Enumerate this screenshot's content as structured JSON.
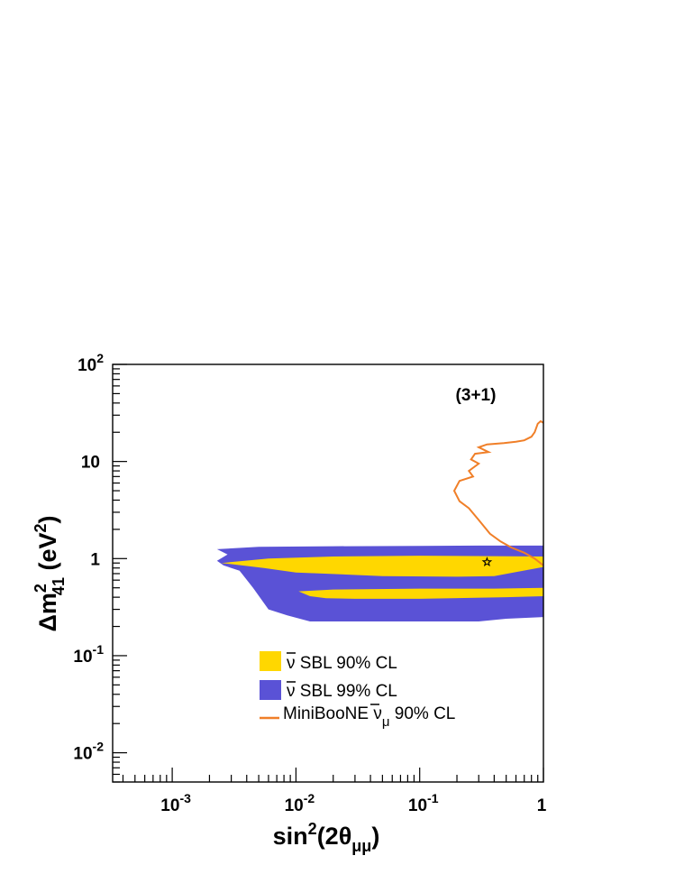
{
  "chart_data": {
    "type": "area",
    "annotation": "(3+1)",
    "x_scale": "log",
    "y_scale": "log",
    "xlim": [
      0.00033,
      1
    ],
    "ylim": [
      0.005,
      100
    ],
    "xlabel": {
      "base": "sin",
      "sup": "2",
      "paren": "(2θ",
      "sub": "μμ",
      "close": ")"
    },
    "ylabel": {
      "base": "Δm",
      "sup": "2",
      "sub": "41",
      "unit": " (eV",
      "unit_sup": "2",
      "close": ")"
    },
    "x_ticks": [
      {
        "value": 0.001,
        "base": "10",
        "exp": "-3"
      },
      {
        "value": 0.01,
        "base": "10",
        "exp": "-2"
      },
      {
        "value": 0.1,
        "base": "10",
        "exp": "-1"
      },
      {
        "value": 1,
        "base": "1",
        "exp": ""
      }
    ],
    "y_ticks": [
      {
        "value": 0.01,
        "base": "10",
        "exp": "-2"
      },
      {
        "value": 0.1,
        "base": "10",
        "exp": "-1"
      },
      {
        "value": 1,
        "base": "1",
        "exp": ""
      },
      {
        "value": 10,
        "base": "10",
        "exp": ""
      },
      {
        "value": 100,
        "base": "10",
        "exp": "2"
      }
    ],
    "series": [
      {
        "name": "ν̄ SBL 99% CL",
        "legend_main": "ν",
        "legend_rest": " SBL 99% CL",
        "kind": "region",
        "color": "#5a52d6",
        "polygons": [
          [
            [
              0.0023,
              1.25
            ],
            [
              0.005,
              1.32
            ],
            [
              0.02,
              1.34
            ],
            [
              0.1,
              1.35
            ],
            [
              0.3,
              1.36
            ],
            [
              1,
              1.36
            ],
            [
              1,
              0.25
            ],
            [
              0.5,
              0.24
            ],
            [
              0.3,
              0.225
            ],
            [
              0.05,
              0.225
            ],
            [
              0.013,
              0.225
            ],
            [
              0.0085,
              0.26
            ],
            [
              0.006,
              0.3
            ],
            [
              0.0045,
              0.5
            ],
            [
              0.0035,
              0.75
            ],
            [
              0.0026,
              0.85
            ],
            [
              0.0023,
              0.95
            ],
            [
              0.0028,
              1.1
            ],
            [
              0.0023,
              1.25
            ]
          ]
        ]
      },
      {
        "name": "ν̄ SBL 90% CL",
        "legend_main": "ν",
        "legend_rest": " SBL 90% CL",
        "kind": "region",
        "color": "#ffd700",
        "polygons": [
          [
            [
              0.0025,
              0.9
            ],
            [
              0.006,
              1.0
            ],
            [
              0.02,
              1.05
            ],
            [
              0.1,
              1.07
            ],
            [
              0.4,
              1.06
            ],
            [
              1,
              1.05
            ],
            [
              1,
              0.82
            ],
            [
              0.4,
              0.66
            ],
            [
              0.2,
              0.65
            ],
            [
              0.05,
              0.66
            ],
            [
              0.01,
              0.72
            ],
            [
              0.0055,
              0.8
            ],
            [
              0.0025,
              0.9
            ]
          ],
          [
            [
              0.0105,
              0.46
            ],
            [
              0.02,
              0.48
            ],
            [
              0.1,
              0.49
            ],
            [
              0.4,
              0.49
            ],
            [
              1,
              0.5
            ],
            [
              1,
              0.41
            ],
            [
              0.5,
              0.4
            ],
            [
              0.1,
              0.385
            ],
            [
              0.03,
              0.385
            ],
            [
              0.0175,
              0.39
            ],
            [
              0.013,
              0.41
            ],
            [
              0.0105,
              0.46
            ]
          ]
        ]
      },
      {
        "name": "MiniBooNE ν̄μ 90% CL",
        "legend_main": "MiniBooNE ν",
        "legend_sub": "μ",
        "legend_rest": " 90% CL",
        "kind": "line",
        "color": "#f07f28",
        "points": [
          [
            1,
            25
          ],
          [
            0.95,
            26
          ],
          [
            0.9,
            24.5
          ],
          [
            0.85,
            20
          ],
          [
            0.8,
            18
          ],
          [
            0.7,
            16.5
          ],
          [
            0.6,
            16
          ],
          [
            0.48,
            15.5
          ],
          [
            0.35,
            15
          ],
          [
            0.3,
            14
          ],
          [
            0.36,
            12.5
          ],
          [
            0.28,
            12
          ],
          [
            0.26,
            10.5
          ],
          [
            0.3,
            9.5
          ],
          [
            0.25,
            8
          ],
          [
            0.27,
            7
          ],
          [
            0.21,
            6.3
          ],
          [
            0.19,
            5
          ],
          [
            0.21,
            3.9
          ],
          [
            0.25,
            3.3
          ],
          [
            0.3,
            2.5
          ],
          [
            0.37,
            1.8
          ],
          [
            0.45,
            1.5
          ],
          [
            0.55,
            1.3
          ],
          [
            0.7,
            1.15
          ],
          [
            0.85,
            1.0
          ],
          [
            1,
            0.85
          ]
        ]
      }
    ],
    "best_fit": {
      "x": 0.35,
      "y": 0.92,
      "marker": "star"
    },
    "legend_position": "lower-center"
  }
}
